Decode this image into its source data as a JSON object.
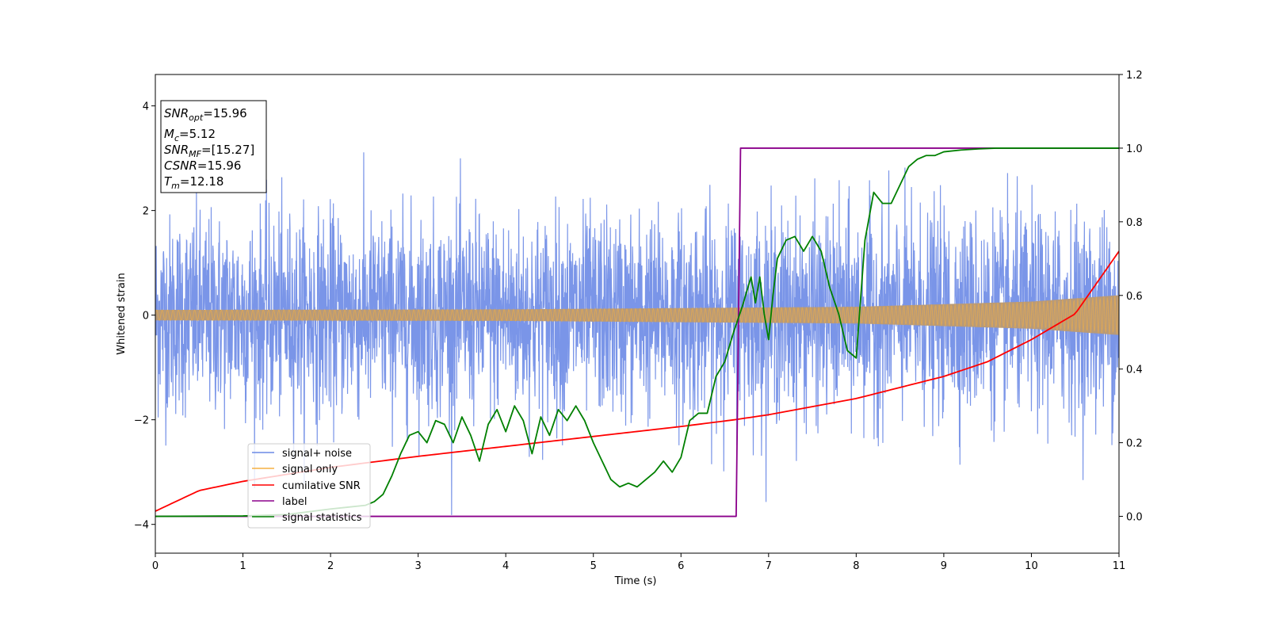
{
  "chart_data": {
    "type": "line",
    "xlabel": "Time (s)",
    "ylabel": "Whitened strain",
    "xlim": [
      0,
      11
    ],
    "ylim_left": [
      -4.55,
      4.6
    ],
    "ylim_right": [
      -0.1,
      1.2
    ],
    "xticks": [
      "0",
      "1",
      "2",
      "3",
      "4",
      "5",
      "6",
      "7",
      "8",
      "9",
      "10",
      "11"
    ],
    "yticks_left": [
      "−4",
      "−2",
      "0",
      "2",
      "4"
    ],
    "yticks_right": [
      "0.0",
      "0.2",
      "0.4",
      "0.6",
      "0.8",
      "1.0",
      "1.2"
    ],
    "grid": false,
    "legend_position": "lower left",
    "colors": {
      "signal_noise": "#6b8ae6",
      "signal_only": "#f5b042",
      "cumulative_snr": "#ff0000",
      "label": "#8b008b",
      "signal_statistics": "#008000",
      "overlap_fill": "#b89a78"
    },
    "series": [
      {
        "name": "signal+ noise",
        "axis": "left",
        "description_of_shape": "noise",
        "typical_range": [
          -2.3,
          2.3
        ],
        "max": 4.18,
        "min": -4.12
      },
      {
        "name": "signal only",
        "axis": "left",
        "envelope": {
          "x": [
            0,
            4,
            8,
            10,
            11
          ],
          "y": [
            0.1,
            0.11,
            0.16,
            0.26,
            0.38
          ]
        }
      },
      {
        "name": "cumilative SNR",
        "axis": "right",
        "x": [
          0,
          0.5,
          1,
          2,
          3,
          4,
          5,
          6,
          6.6,
          7,
          8,
          9,
          9.5,
          10,
          10.5,
          11
        ],
        "y": [
          0.014,
          0.07,
          0.095,
          0.133,
          0.163,
          0.19,
          0.217,
          0.244,
          0.262,
          0.276,
          0.32,
          0.38,
          0.42,
          0.48,
          0.55,
          0.72
        ]
      },
      {
        "name": "label",
        "axis": "right",
        "x": [
          0,
          6.63,
          6.68,
          11
        ],
        "y": [
          0,
          0,
          1,
          1
        ]
      },
      {
        "name": "signal statistics",
        "axis": "right",
        "x": [
          0,
          1,
          1.5,
          2,
          2.2,
          2.4,
          2.5,
          2.6,
          2.7,
          2.8,
          2.9,
          3.0,
          3.1,
          3.2,
          3.3,
          3.4,
          3.5,
          3.6,
          3.7,
          3.8,
          3.9,
          4.0,
          4.1,
          4.2,
          4.3,
          4.4,
          4.5,
          4.6,
          4.7,
          4.8,
          4.9,
          5.0,
          5.1,
          5.2,
          5.3,
          5.4,
          5.5,
          5.6,
          5.7,
          5.8,
          5.9,
          6.0,
          6.1,
          6.2,
          6.3,
          6.4,
          6.5,
          6.6,
          6.7,
          6.8,
          6.85,
          6.9,
          6.95,
          7.0,
          7.05,
          7.1,
          7.2,
          7.3,
          7.4,
          7.5,
          7.6,
          7.7,
          7.8,
          7.9,
          8.0,
          8.1,
          8.2,
          8.3,
          8.4,
          8.5,
          8.6,
          8.7,
          8.8,
          8.9,
          9.0,
          9.2,
          9.4,
          9.6,
          9.8,
          10.0,
          10.5,
          11.0
        ],
        "y": [
          0,
          0.001,
          0.005,
          0.02,
          0.025,
          0.03,
          0.04,
          0.06,
          0.11,
          0.17,
          0.22,
          0.23,
          0.2,
          0.26,
          0.25,
          0.2,
          0.27,
          0.22,
          0.15,
          0.25,
          0.29,
          0.23,
          0.3,
          0.26,
          0.17,
          0.27,
          0.22,
          0.29,
          0.26,
          0.3,
          0.26,
          0.2,
          0.15,
          0.1,
          0.08,
          0.09,
          0.08,
          0.1,
          0.12,
          0.15,
          0.12,
          0.16,
          0.26,
          0.28,
          0.28,
          0.38,
          0.42,
          0.5,
          0.57,
          0.65,
          0.58,
          0.65,
          0.55,
          0.48,
          0.6,
          0.7,
          0.75,
          0.76,
          0.72,
          0.76,
          0.72,
          0.62,
          0.55,
          0.45,
          0.43,
          0.75,
          0.88,
          0.85,
          0.85,
          0.9,
          0.95,
          0.97,
          0.98,
          0.98,
          0.99,
          0.995,
          0.998,
          1.0,
          1.0,
          1.0,
          1.0,
          1.0
        ]
      }
    ],
    "annotations": {
      "snr_opt": {
        "name": "SNR",
        "sub": "opt",
        "value": "=15.96"
      },
      "mc": {
        "name": "M",
        "sub": "c",
        "value": "=5.12"
      },
      "snr_mf": {
        "name": "SNR",
        "sub": "MF",
        "value": "=[15.27]"
      },
      "csnr": {
        "name": "CSNR",
        "value": "=15.96"
      },
      "tm": {
        "name": "T",
        "sub": "m",
        "value": "=12.18"
      }
    }
  }
}
